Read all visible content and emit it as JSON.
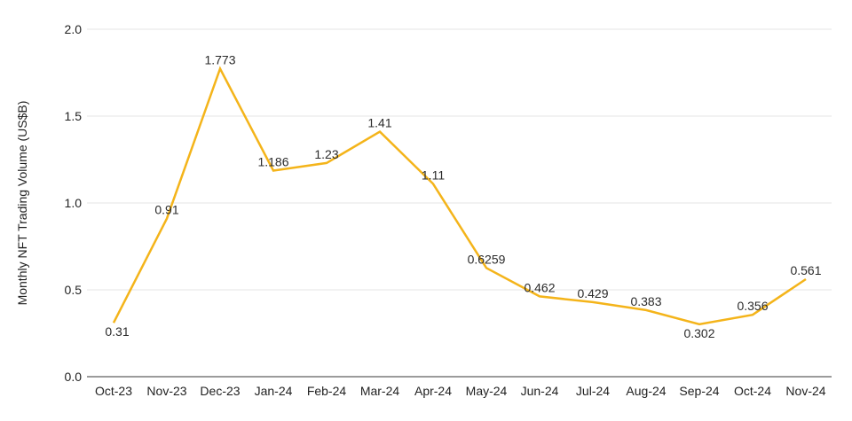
{
  "chart_data": {
    "type": "line",
    "title": "",
    "xlabel": "",
    "ylabel": "Monthly NFT Trading Volume (US$B)",
    "categories": [
      "Oct-23",
      "Nov-23",
      "Dec-23",
      "Jan-24",
      "Feb-24",
      "Mar-24",
      "Apr-24",
      "May-24",
      "Jun-24",
      "Jul-24",
      "Aug-24",
      "Sep-24",
      "Oct-24",
      "Nov-24"
    ],
    "series": [
      {
        "name": "Monthly NFT Trading Volume",
        "values": [
          0.31,
          0.91,
          1.773,
          1.186,
          1.23,
          1.41,
          1.11,
          0.6259,
          0.462,
          0.429,
          0.383,
          0.302,
          0.356,
          0.561
        ],
        "point_labels": [
          "0.31",
          "0.91",
          "1.773",
          "1.186",
          "1.23",
          "1.41",
          "1.11",
          "0.6259",
          "0.462",
          "0.429",
          "0.383",
          "0.302",
          "0.356",
          "0.561"
        ]
      }
    ],
    "y_ticks": [
      {
        "value": 0.0,
        "label": "0.0"
      },
      {
        "value": 0.5,
        "label": "0.5"
      },
      {
        "value": 1.0,
        "label": "1.0"
      },
      {
        "value": 1.5,
        "label": "1.5"
      },
      {
        "value": 2.0,
        "label": "2.0"
      }
    ],
    "ylim": [
      0.0,
      2.0
    ],
    "grid": true,
    "legend_position": "none",
    "colors": {
      "line": "#F4B41A",
      "gridline": "#E4E4E4",
      "zero_axis": "#9B9B9B",
      "tick_text": "#1F1F1F",
      "data_label_text": "#2B2B2B",
      "axis_title_text": "#1F1F1F",
      "background": "#FFFFFF"
    }
  }
}
